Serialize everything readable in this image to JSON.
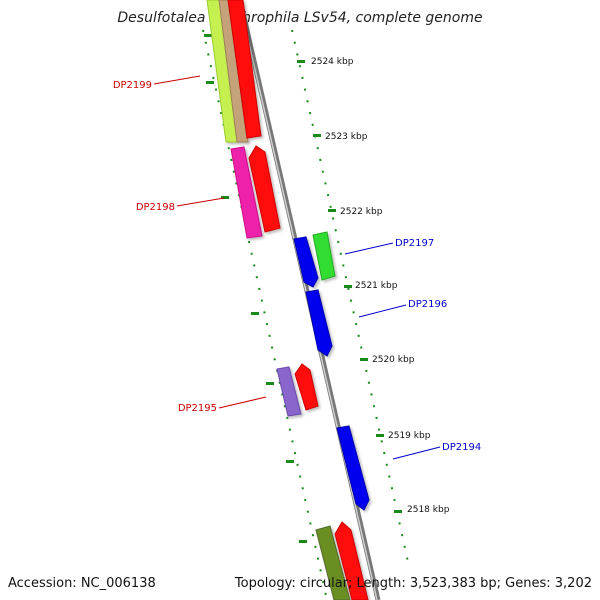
{
  "title": "Desulfotalea psychrophila LSv54, complete genome",
  "footer": {
    "accession": "Accession: NC_006138",
    "summary": "Topology: circular; Length: 3,523,383 bp; Genes: 3,202"
  },
  "colors": {
    "backbone": "#8a8a8a",
    "tick": "#1a8a1a",
    "label_reverse": "#cc0000",
    "label_forward": "#0000cc"
  },
  "scale_labels": [
    "2524 kbp",
    "2523 kbp",
    "2522 kbp",
    "2521 kbp",
    "2520 kbp",
    "2519 kbp",
    "2518 kbp"
  ],
  "gene_labels": [
    {
      "id": "DP2199",
      "strand": "reverse"
    },
    {
      "id": "DP2198",
      "strand": "reverse"
    },
    {
      "id": "DP2197",
      "strand": "forward"
    },
    {
      "id": "DP2196",
      "strand": "forward"
    },
    {
      "id": "DP2195",
      "strand": "reverse"
    },
    {
      "id": "DP2194",
      "strand": "forward"
    }
  ]
}
